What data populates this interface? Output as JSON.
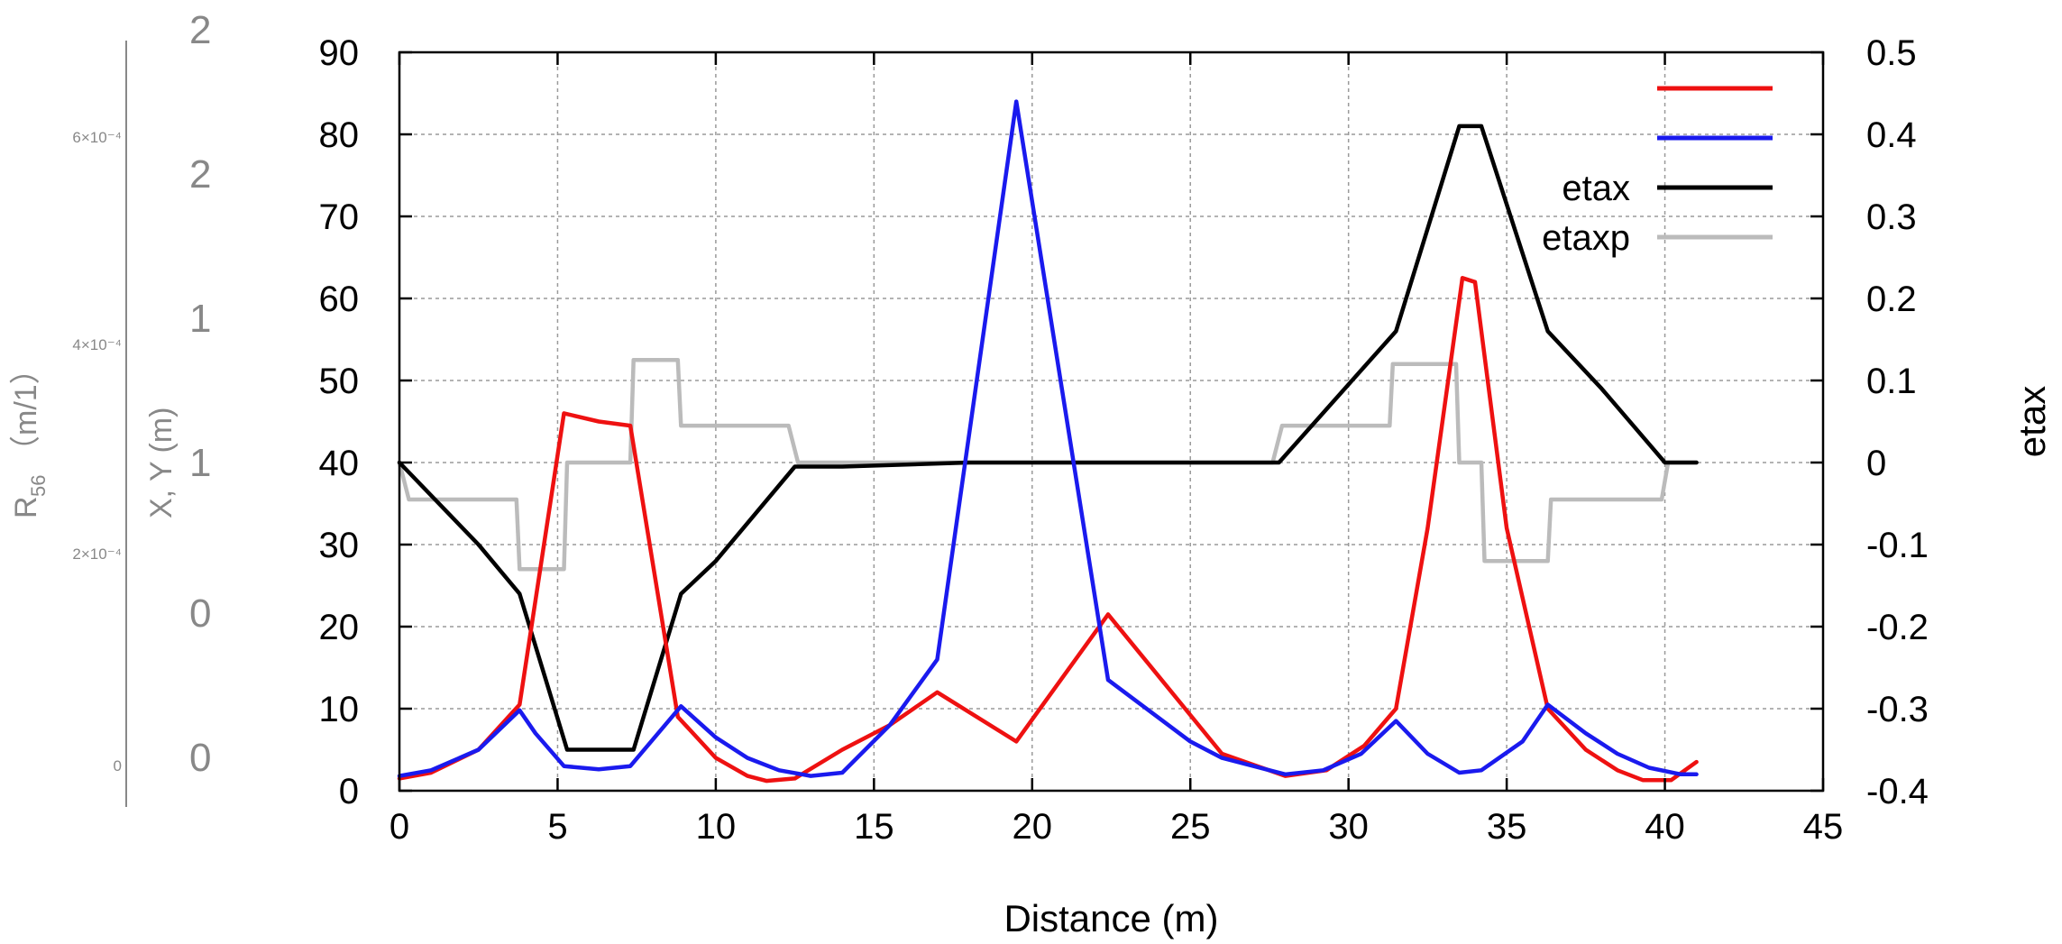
{
  "chart_data": {
    "type": "line",
    "title": "",
    "xlabel": "Distance (m)",
    "ylabel_left": "",
    "ylabel_right": "etax",
    "xlim": [
      0,
      45
    ],
    "ylim_left": [
      0,
      90
    ],
    "ylim_right": [
      -0.4,
      0.5
    ],
    "grid": true,
    "legend_position": "top-right",
    "x_ticks": [
      "0",
      "5",
      "10",
      "15",
      "20",
      "25",
      "30",
      "35",
      "40",
      "45"
    ],
    "y_ticks_left": [
      "0",
      "10",
      "20",
      "30",
      "40",
      "50",
      "60",
      "70",
      "80",
      "90"
    ],
    "y_ticks_right": [
      "-0.4",
      "-0.3",
      "-0.2",
      "-0.1",
      "0",
      "0.1",
      "0.2",
      "0.3",
      "0.4",
      "0.5"
    ],
    "ghost_axes": {
      "r56_label": "R",
      "r56_sub": "56",
      "r56_unit": "（m/1）",
      "r56_ticks": [
        "6×10⁻⁴",
        "4×10⁻⁴",
        "2×10⁻⁴",
        "0"
      ],
      "xy_label": "X, Y (m)",
      "xy_glyphs": [
        "2",
        "2",
        "1",
        "1",
        "0",
        "0"
      ]
    },
    "series": [
      {
        "name": "",
        "axis": "left",
        "color": "#ee1111",
        "points": [
          [
            0,
            1.5
          ],
          [
            1,
            2.2
          ],
          [
            2.5,
            5
          ],
          [
            3.8,
            10.5
          ],
          [
            5.2,
            46
          ],
          [
            6.3,
            45
          ],
          [
            7.3,
            44.5
          ],
          [
            8.8,
            9
          ],
          [
            10,
            4
          ],
          [
            11,
            1.8
          ],
          [
            11.6,
            1.2
          ],
          [
            12.5,
            1.5
          ],
          [
            14,
            5
          ],
          [
            15.5,
            8
          ],
          [
            17,
            12
          ],
          [
            19.5,
            6
          ],
          [
            22.4,
            21.5
          ],
          [
            26,
            4.5
          ],
          [
            28,
            1.8
          ],
          [
            29.3,
            2.5
          ],
          [
            30.5,
            5.5
          ],
          [
            31.5,
            10
          ],
          [
            32.5,
            32
          ],
          [
            33.6,
            62.5
          ],
          [
            34,
            62
          ],
          [
            35,
            32
          ],
          [
            36.3,
            10
          ],
          [
            37.5,
            5
          ],
          [
            38.5,
            2.5
          ],
          [
            39.3,
            1.3
          ],
          [
            40.2,
            1.3
          ],
          [
            41,
            3.5
          ]
        ]
      },
      {
        "name": "",
        "axis": "left",
        "color": "#1a1aee",
        "points": [
          [
            0,
            1.8
          ],
          [
            1,
            2.5
          ],
          [
            2.5,
            5
          ],
          [
            3.8,
            9.8
          ],
          [
            4.3,
            7
          ],
          [
            5.2,
            3
          ],
          [
            6.3,
            2.6
          ],
          [
            7.3,
            3
          ],
          [
            8.9,
            10.3
          ],
          [
            10,
            6.5
          ],
          [
            11,
            4
          ],
          [
            12,
            2.5
          ],
          [
            13,
            1.8
          ],
          [
            14,
            2.2
          ],
          [
            15.5,
            8
          ],
          [
            17,
            16
          ],
          [
            19.5,
            84
          ],
          [
            22.4,
            13.5
          ],
          [
            25,
            6
          ],
          [
            26,
            4
          ],
          [
            28,
            2
          ],
          [
            29.2,
            2.5
          ],
          [
            30.4,
            4.5
          ],
          [
            31.5,
            8.5
          ],
          [
            32.5,
            4.5
          ],
          [
            33.5,
            2.2
          ],
          [
            34.2,
            2.5
          ],
          [
            35.5,
            6
          ],
          [
            36.3,
            10.5
          ],
          [
            37.5,
            7
          ],
          [
            38.5,
            4.5
          ],
          [
            39.5,
            2.8
          ],
          [
            40.5,
            2
          ],
          [
            41,
            2
          ]
        ]
      },
      {
        "name": "etax",
        "axis": "right",
        "color": "#000000",
        "points": [
          [
            0,
            0
          ],
          [
            2.5,
            -0.1
          ],
          [
            3.8,
            -0.16
          ],
          [
            5.3,
            -0.35
          ],
          [
            7.4,
            -0.35
          ],
          [
            8.9,
            -0.16
          ],
          [
            10,
            -0.12
          ],
          [
            12.5,
            -0.005
          ],
          [
            14,
            -0.005
          ],
          [
            18,
            0
          ],
          [
            20,
            0
          ],
          [
            26,
            0
          ],
          [
            27.8,
            0
          ],
          [
            31.5,
            0.16
          ],
          [
            33.5,
            0.41
          ],
          [
            34.2,
            0.41
          ],
          [
            36.3,
            0.16
          ],
          [
            38,
            0.09
          ],
          [
            40,
            0
          ],
          [
            41,
            0
          ]
        ]
      },
      {
        "name": "etaxp",
        "axis": "right",
        "color": "#bbbbbb",
        "points": [
          [
            0,
            0
          ],
          [
            0.3,
            -0.045
          ],
          [
            3.7,
            -0.045
          ],
          [
            3.8,
            -0.13
          ],
          [
            5.2,
            -0.13
          ],
          [
            5.3,
            0
          ],
          [
            7.3,
            0
          ],
          [
            7.4,
            0.125
          ],
          [
            8.8,
            0.125
          ],
          [
            8.9,
            0.045
          ],
          [
            12.3,
            0.045
          ],
          [
            12.6,
            0
          ],
          [
            27.6,
            0
          ],
          [
            27.9,
            0.045
          ],
          [
            31.3,
            0.045
          ],
          [
            31.4,
            0.12
          ],
          [
            33.4,
            0.12
          ],
          [
            33.5,
            0
          ],
          [
            34.2,
            0
          ],
          [
            34.3,
            -0.12
          ],
          [
            36.3,
            -0.12
          ],
          [
            36.4,
            -0.045
          ],
          [
            39.9,
            -0.045
          ],
          [
            40.1,
            0
          ],
          [
            41,
            0
          ]
        ]
      }
    ]
  }
}
